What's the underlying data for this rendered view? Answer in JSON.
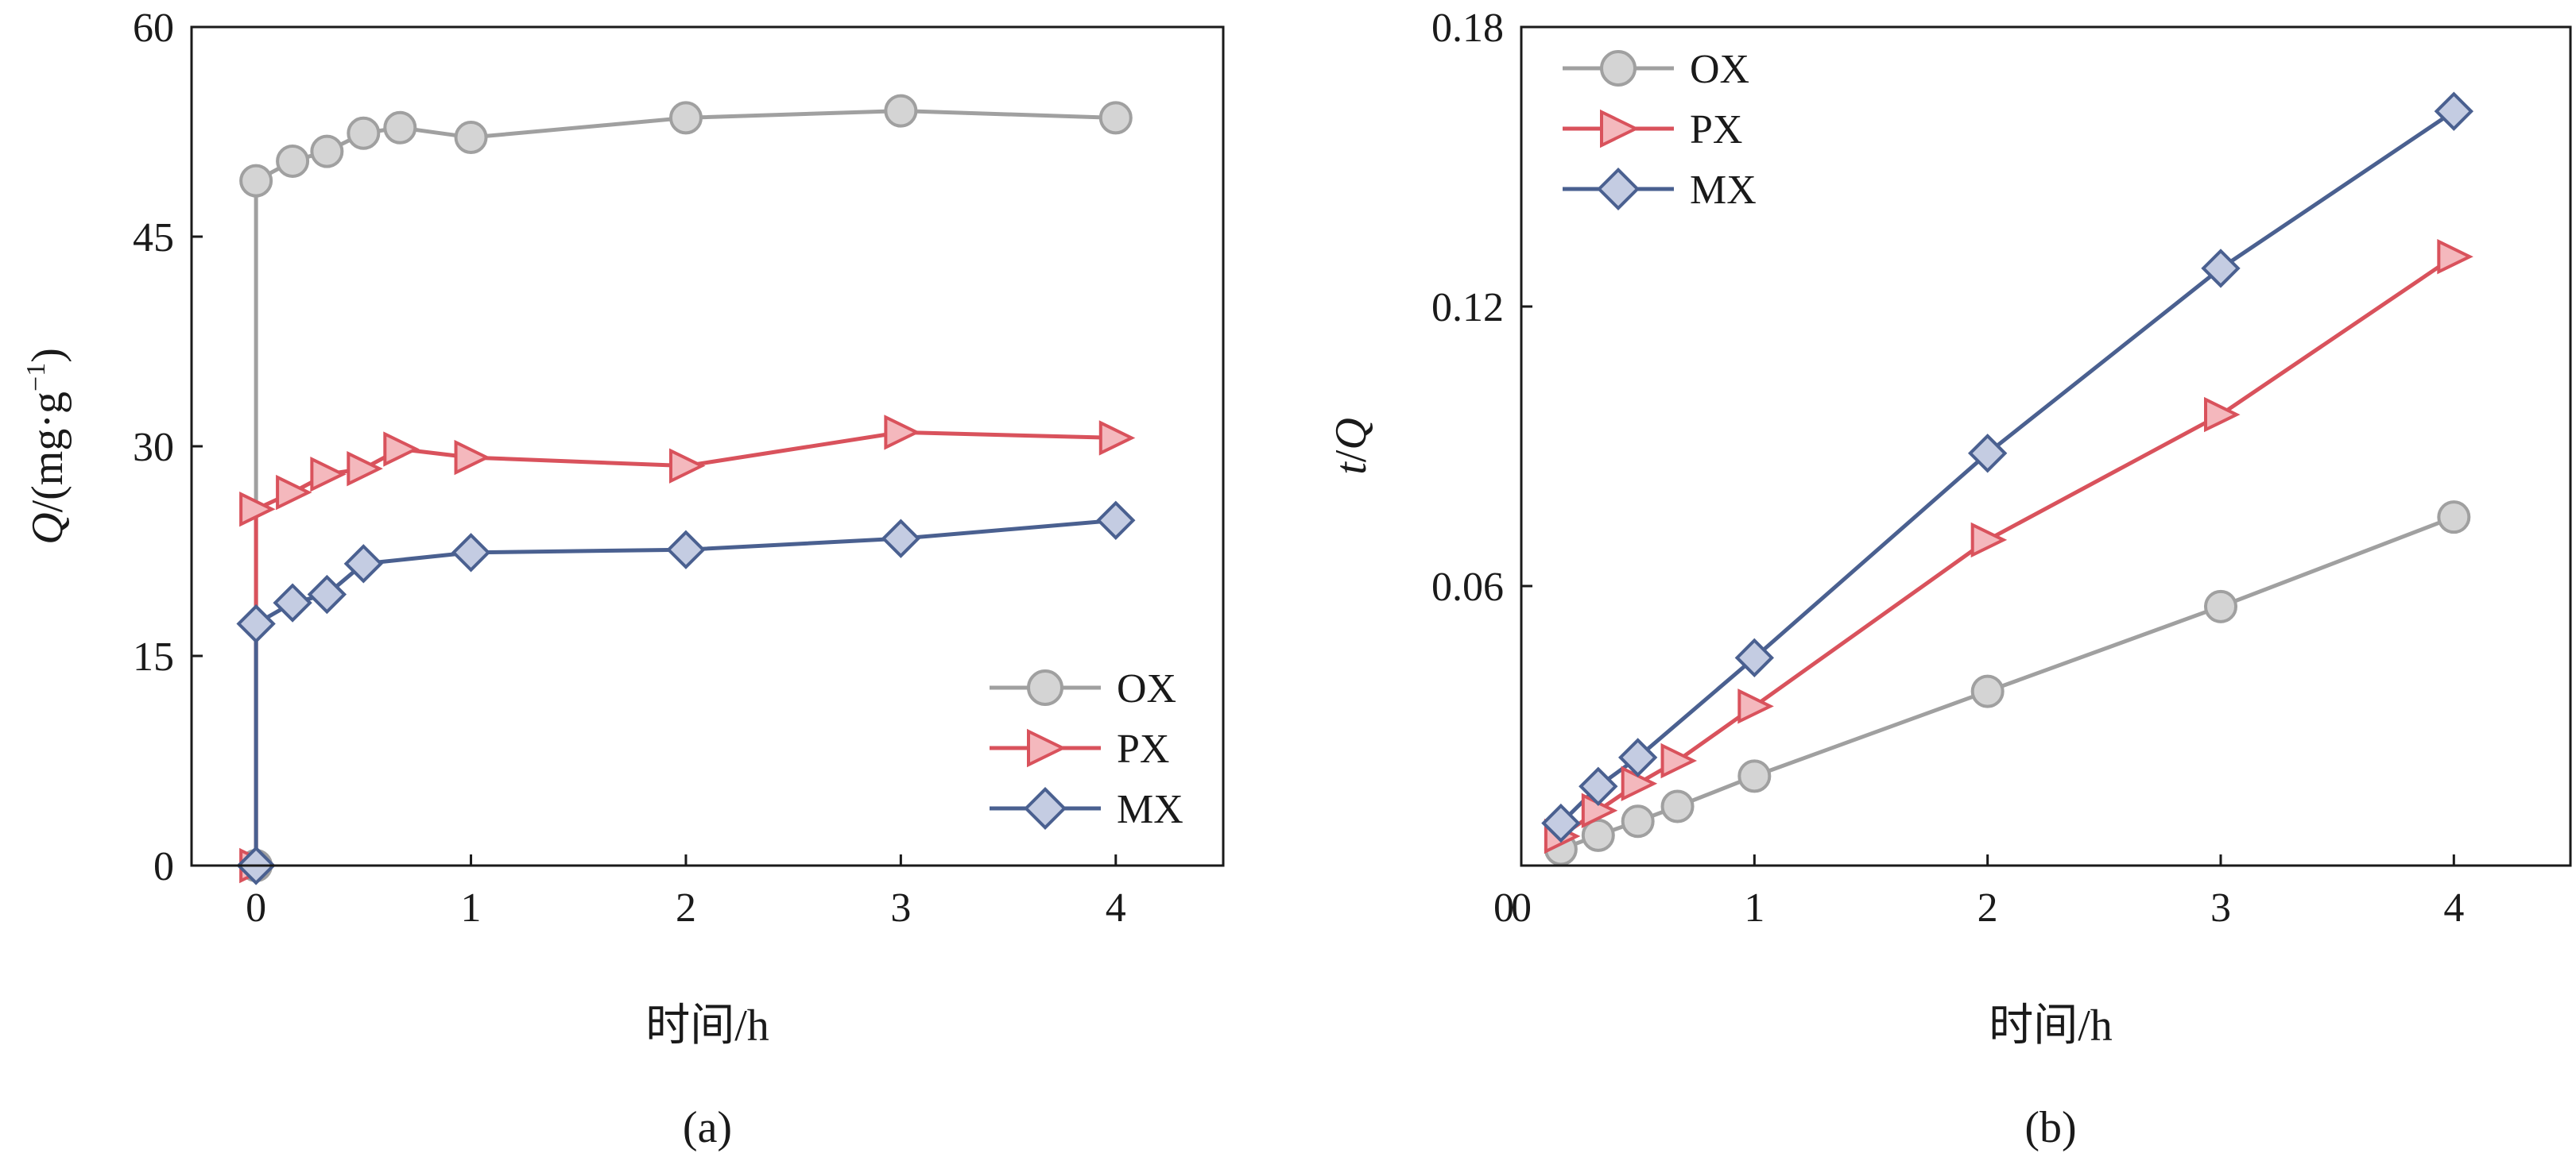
{
  "panels": [
    {
      "caption": "(a)",
      "xlabel": "时间/h",
      "ylabel": "Q/(mg·g⁻¹)",
      "ylabel_parts": {
        "italic": "Q",
        "rest": "/(mg·g",
        "sup": "−1",
        "close": ")"
      }
    },
    {
      "caption": "(b)",
      "xlabel": "时间/h",
      "ylabel": "t/Q",
      "ylabel_parts": {
        "italic1": "t",
        "slash": "/",
        "italic2": "Q"
      }
    }
  ],
  "chart_data": [
    {
      "type": "line",
      "title": "",
      "xlabel": "时间/h",
      "ylabel": "Q/(mg·g⁻¹)",
      "xlim": [
        -0.3,
        4.5
      ],
      "ylim": [
        0,
        60
      ],
      "xticks": [
        0,
        1,
        2,
        3,
        4
      ],
      "xtick_labels": [
        "0",
        "1",
        "2",
        "3",
        "4"
      ],
      "yticks": [
        0,
        15,
        30,
        45,
        60
      ],
      "ytick_labels": [
        "0",
        "15",
        "30",
        "45",
        "60"
      ],
      "grid": false,
      "legend": "bottom-right",
      "series": [
        {
          "name": "OX",
          "marker": "circle",
          "color": "#a0a0a0",
          "fill": "#d4d4d4",
          "x": [
            0,
            0,
            0.17,
            0.33,
            0.5,
            0.67,
            1,
            2,
            3,
            4
          ],
          "y": [
            0,
            49.0,
            50.4,
            51.1,
            52.4,
            52.8,
            52.1,
            53.5,
            54.0,
            53.5
          ]
        },
        {
          "name": "PX",
          "marker": "triangle-right",
          "color": "#d9525c",
          "fill": "#f4b8bd",
          "x": [
            0,
            0,
            0.17,
            0.33,
            0.5,
            0.67,
            1,
            2,
            3,
            4
          ],
          "y": [
            0,
            25.5,
            26.7,
            28.0,
            28.4,
            29.8,
            29.2,
            28.6,
            31.0,
            30.6
          ]
        },
        {
          "name": "MX",
          "marker": "diamond",
          "color": "#4a6090",
          "fill": "#c4cce2",
          "x": [
            0,
            0,
            0.17,
            0.33,
            0.5,
            1,
            2,
            3,
            4
          ],
          "y": [
            0,
            17.3,
            18.8,
            19.4,
            21.6,
            22.4,
            22.6,
            23.4,
            24.7
          ]
        }
      ]
    },
    {
      "type": "line",
      "title": "",
      "xlabel": "时间/h",
      "ylabel": "t/Q",
      "xlim": [
        0,
        4.5
      ],
      "ylim": [
        0,
        0.18
      ],
      "xticks": [
        0,
        1,
        2,
        3,
        4
      ],
      "xtick_labels": [
        "0",
        "1",
        "2",
        "3",
        "4"
      ],
      "yticks": [
        0.06,
        0.12,
        0.18
      ],
      "ytick_labels": [
        "0.06",
        "0.12",
        "0.18"
      ],
      "grid": false,
      "legend": "top-left",
      "series": [
        {
          "name": "OX",
          "marker": "circle",
          "color": "#a0a0a0",
          "fill": "#d4d4d4",
          "x": [
            0.17,
            0.33,
            0.5,
            0.67,
            1,
            2,
            3,
            4
          ],
          "y": [
            0.0035,
            0.0065,
            0.0095,
            0.0127,
            0.0192,
            0.0374,
            0.0556,
            0.0748
          ]
        },
        {
          "name": "PX",
          "marker": "triangle-right",
          "color": "#d9525c",
          "fill": "#f4b8bd",
          "x": [
            0.17,
            0.33,
            0.5,
            0.67,
            1,
            2,
            3,
            4
          ],
          "y": [
            0.0063,
            0.0118,
            0.0176,
            0.0225,
            0.0342,
            0.0699,
            0.0968,
            0.1307
          ]
        },
        {
          "name": "MX",
          "marker": "diamond",
          "color": "#4a6090",
          "fill": "#c4cce2",
          "x": [
            0.17,
            0.33,
            0.5,
            1,
            2,
            3,
            4
          ],
          "y": [
            0.0091,
            0.017,
            0.0232,
            0.0446,
            0.0885,
            0.1282,
            0.1619
          ]
        }
      ]
    }
  ]
}
